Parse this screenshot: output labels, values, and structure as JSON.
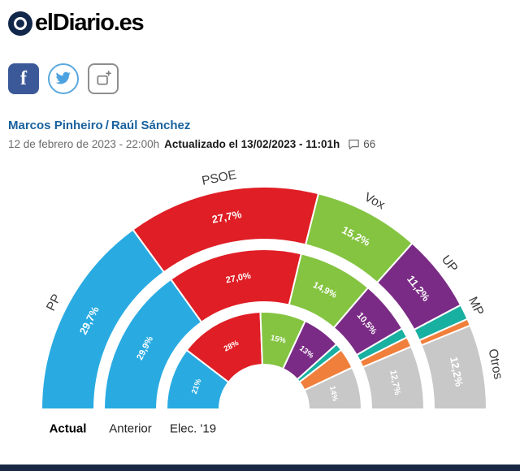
{
  "header": {
    "logo_text": "elDiario.es",
    "authors": [
      "Marcos Pinheiro",
      "Raúl Sánchez"
    ],
    "authors_separator": "/",
    "date": "12 de febrero de 2023 - 22:00h",
    "updated": "Actualizado el 13/02/2023 - 11:01h",
    "comments_count": "66",
    "social_icons": [
      "facebook-icon",
      "twitter-icon",
      "share-add-icon"
    ],
    "facebook_glyph": "f"
  },
  "chart_data": {
    "type": "half-donut",
    "legend_position": "bottom",
    "parties": [
      {
        "id": "pp",
        "name": "PP",
        "color": "#29abe2",
        "show_label": true
      },
      {
        "id": "psoe",
        "name": "PSOE",
        "color": "#e01e25",
        "show_label": true
      },
      {
        "id": "vox",
        "name": "Vox",
        "color": "#84c441",
        "show_label": true
      },
      {
        "id": "up",
        "name": "UP",
        "color": "#7a2b85",
        "show_label": true
      },
      {
        "id": "mp",
        "name": "MP",
        "color": "#18b0a0",
        "show_label": true
      },
      {
        "id": "orange",
        "name": "",
        "color": "#f07f3c",
        "show_label": false
      },
      {
        "id": "otros",
        "name": "Otros",
        "color": "#c8c8c8",
        "show_label": true
      }
    ],
    "rings": [
      {
        "label": "Actual",
        "values": [
          29.7,
          27.7,
          15.2,
          11.2,
          2.2,
          1.0,
          12.2
        ],
        "display": [
          "29,7%",
          "27,7%",
          "15,2%",
          "11,2%",
          null,
          null,
          "12,2%"
        ]
      },
      {
        "label": "Anterior",
        "values": [
          29.9,
          27.0,
          14.9,
          10.5,
          2.0,
          2.0,
          12.7
        ],
        "display": [
          "29,9%",
          "27,0%",
          "14,9%",
          "10,5%",
          null,
          null,
          "12,7%"
        ]
      },
      {
        "label": "Elec. '19",
        "values": [
          20.8,
          28.0,
          15.1,
          12.8,
          2.4,
          6.8,
          14.1
        ],
        "display": [
          "21%",
          "28%",
          "15%",
          "13%",
          null,
          null,
          "14%"
        ]
      }
    ]
  },
  "footer": {
    "bar_color": "#182844"
  }
}
